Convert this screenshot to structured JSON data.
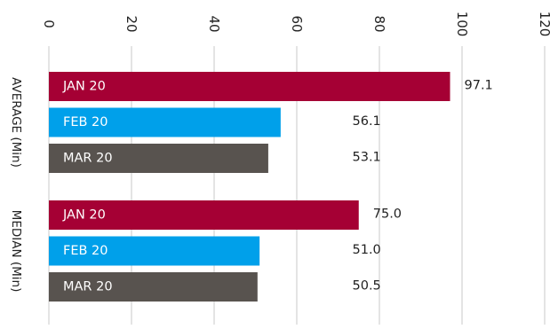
{
  "chart_data": {
    "type": "bar",
    "orientation": "horizontal",
    "title": "",
    "xlim": [
      0,
      120
    ],
    "x_ticks": [
      0,
      20,
      40,
      60,
      80,
      100,
      120
    ],
    "tick_label_rotation": 90,
    "grid": true,
    "groups": [
      {
        "label": "AVERAGE (Min)",
        "bars": [
          {
            "label": "JAN 20",
            "value": 97.1,
            "value_label": "97.1",
            "color": "#a50034"
          },
          {
            "label": "FEB  20",
            "value": 56.1,
            "value_label": "56.1",
            "color": "#00a0ea"
          },
          {
            "label": "MAR 20",
            "value": 53.1,
            "value_label": "53.1",
            "color": "#58534f"
          }
        ]
      },
      {
        "label": "MEDIAN (Min)",
        "bars": [
          {
            "label": "JAN 20",
            "value": 75.0,
            "value_label": "75.0",
            "color": "#a50034"
          },
          {
            "label": "FEB  20",
            "value": 51.0,
            "value_label": "51.0",
            "color": "#00a0ea"
          },
          {
            "label": "MAR 20",
            "value": 50.5,
            "value_label": "50.5",
            "color": "#58534f"
          }
        ]
      }
    ]
  }
}
